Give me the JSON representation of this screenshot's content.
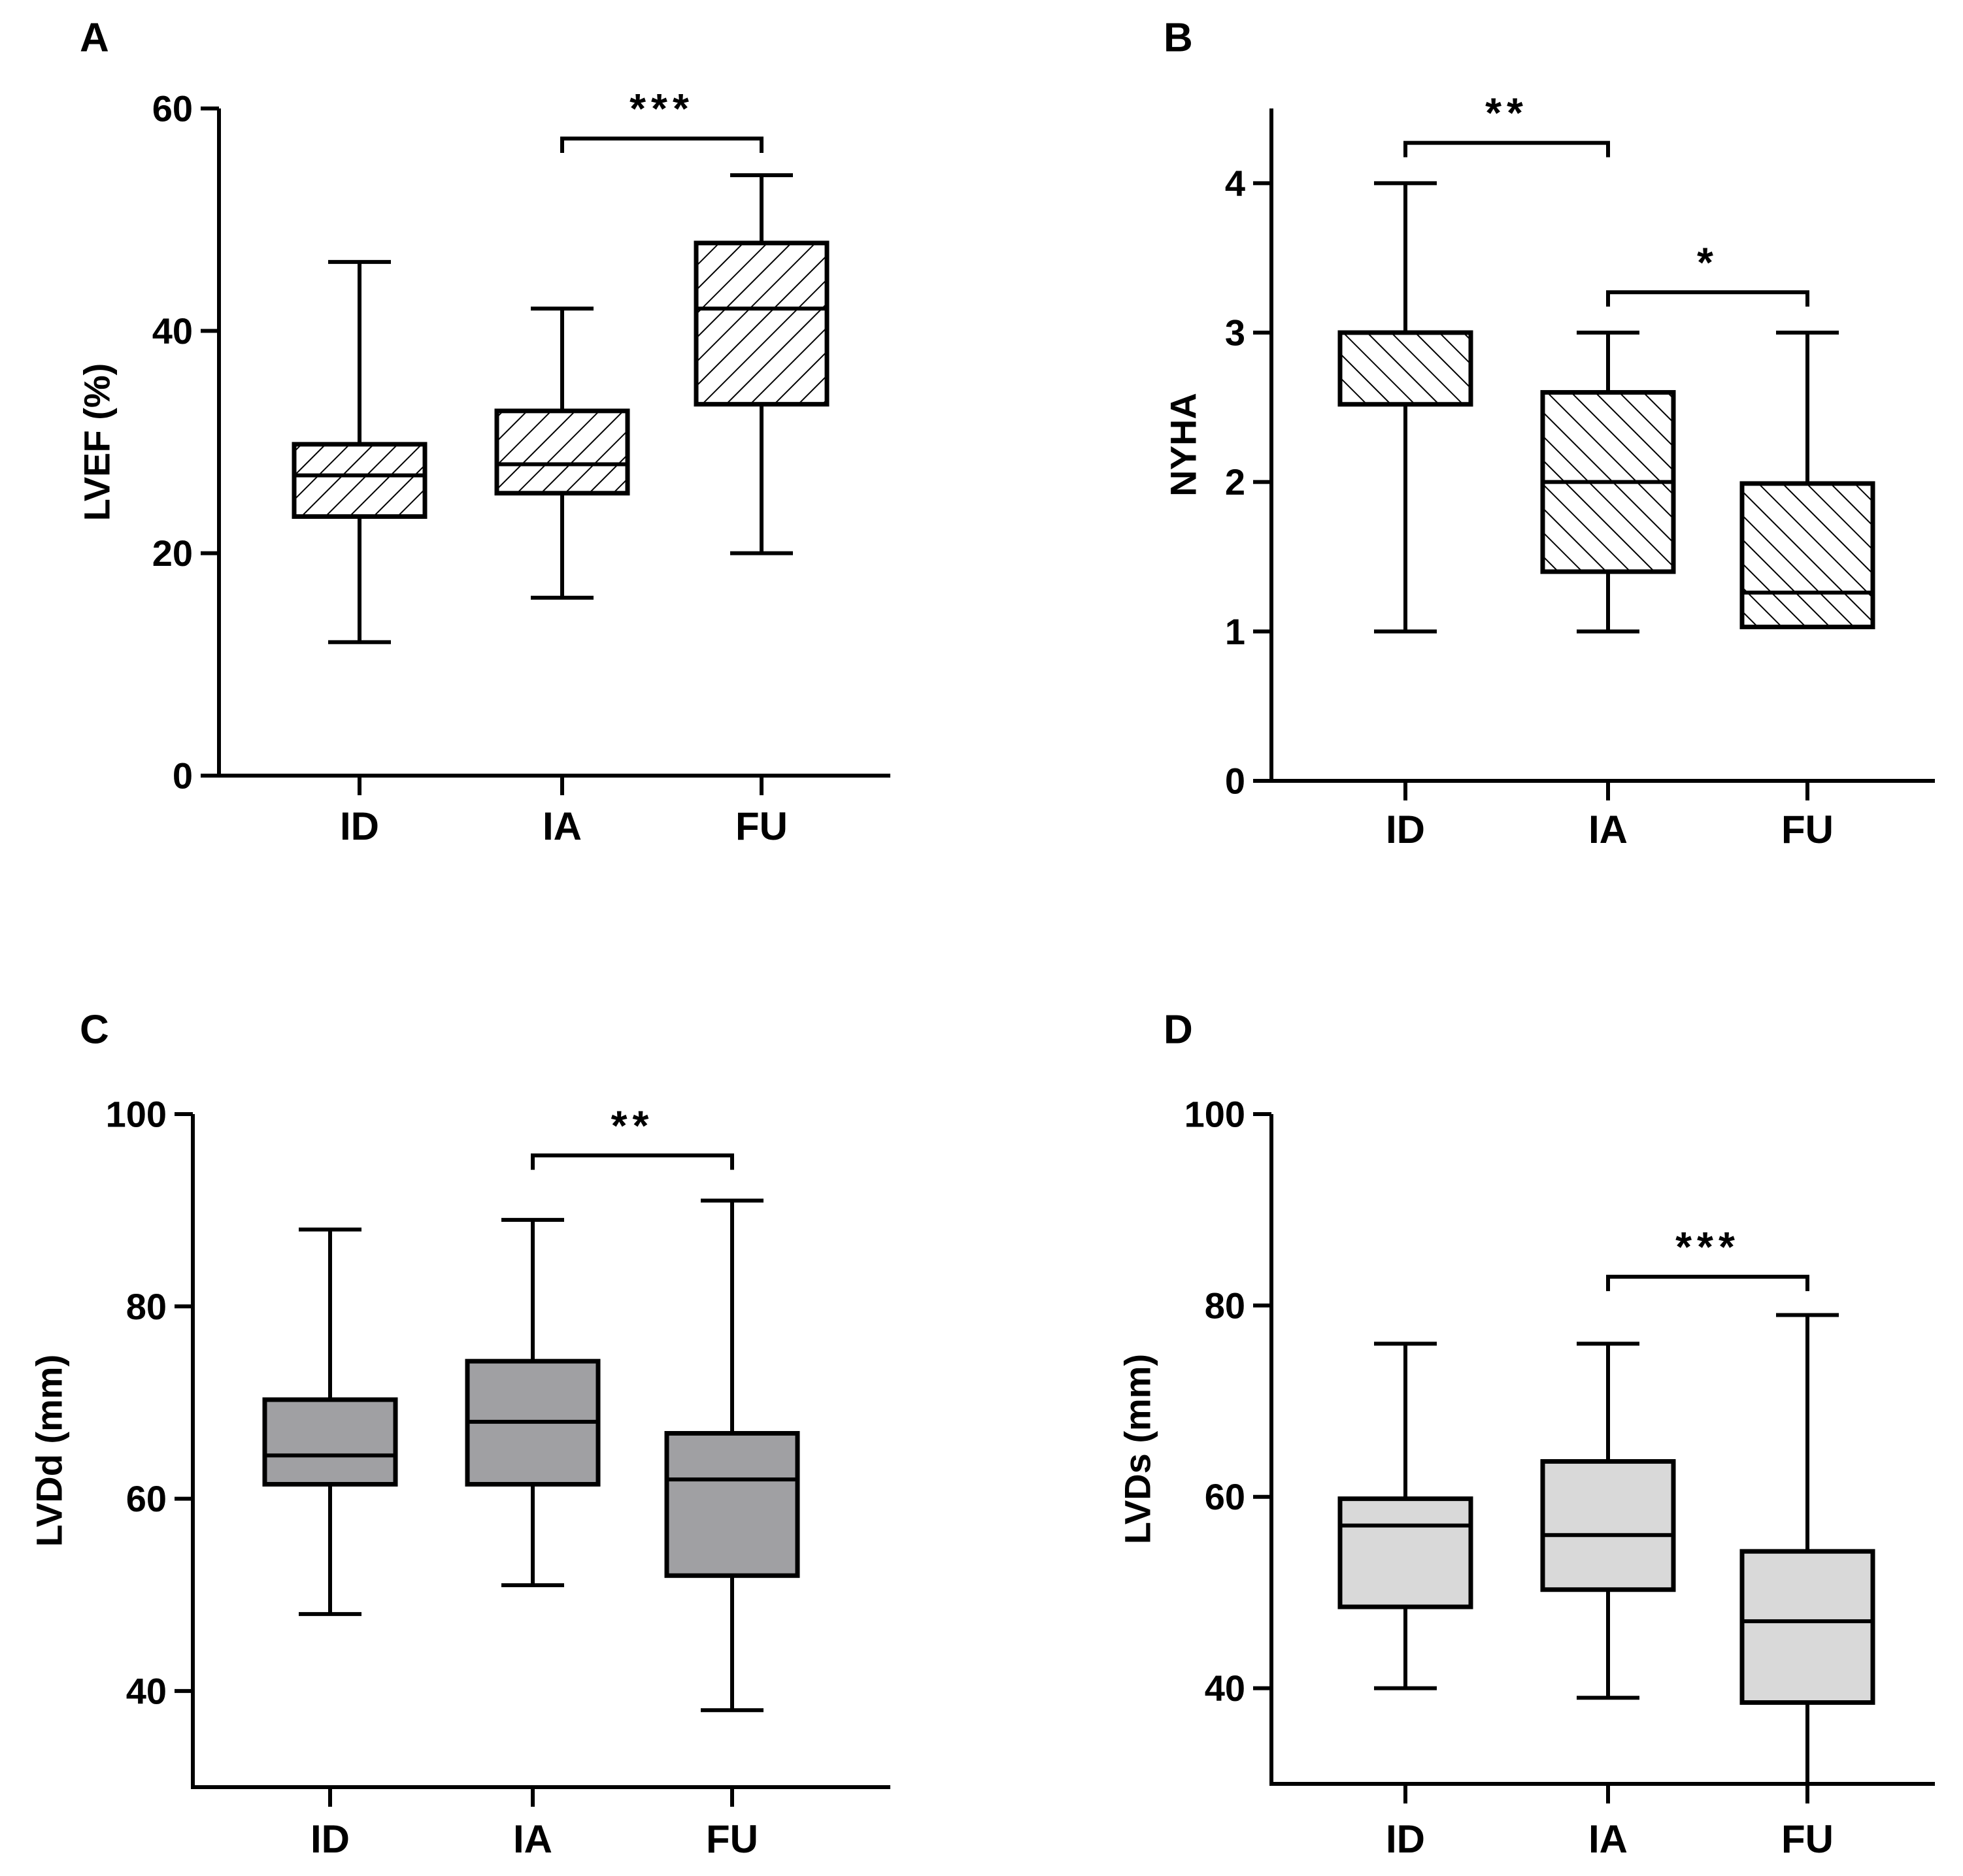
{
  "colors": {
    "axis": "#000000",
    "hatch": "#000000",
    "fill_hatched": "#ffffff",
    "fill_dark": "#a0a0a3",
    "fill_light": "#d9d9d9"
  },
  "chart_data": [
    {
      "panel": "A",
      "type": "box",
      "ylabel": "LVEF (%)",
      "ylim": [
        0,
        60
      ],
      "yticks": [
        0,
        20,
        40,
        60
      ],
      "ytick_labels": [
        "0",
        "20",
        "40",
        "60"
      ],
      "categories": [
        "ID",
        "IA",
        "FU"
      ],
      "fill_style": "hatch-forward",
      "boxes": [
        {
          "category": "ID",
          "min": 12,
          "q1": 23.3,
          "median": 27,
          "q3": 29.8,
          "max": 46.2
        },
        {
          "category": "IA",
          "min": 16,
          "q1": 25.4,
          "median": 28,
          "q3": 32.8,
          "max": 42
        },
        {
          "category": "FU",
          "min": 20,
          "q1": 33.4,
          "median": 42,
          "q3": 47.9,
          "max": 54
        }
      ],
      "significance": [
        {
          "from": "IA",
          "to": "FU",
          "label": "***",
          "y": 57.3
        }
      ]
    },
    {
      "panel": "B",
      "type": "box",
      "ylabel": "NYHA",
      "ylim": [
        0,
        4.5
      ],
      "yticks": [
        0,
        1,
        2,
        3,
        4
      ],
      "ytick_labels": [
        "0",
        "1",
        "2",
        "3",
        "4"
      ],
      "categories": [
        "ID",
        "IA",
        "FU"
      ],
      "fill_style": "hatch-back",
      "boxes": [
        {
          "category": "ID",
          "min": 1,
          "q1": 2.52,
          "median": 3,
          "q3": 3,
          "max": 4
        },
        {
          "category": "IA",
          "min": 1,
          "q1": 1.4,
          "median": 2,
          "q3": 2.6,
          "max": 3
        },
        {
          "category": "FU",
          "min": 1.03,
          "q1": 1.03,
          "median": 1.26,
          "q3": 1.99,
          "max": 3
        }
      ],
      "significance": [
        {
          "from": "ID",
          "to": "IA",
          "label": "**",
          "y": 4.27
        },
        {
          "from": "IA",
          "to": "FU",
          "label": "*",
          "y": 3.27
        }
      ]
    },
    {
      "panel": "C",
      "type": "box",
      "ylabel": "LVDd (mm)",
      "ylim": [
        30,
        100
      ],
      "yticks": [
        40,
        60,
        80,
        100
      ],
      "ytick_labels": [
        "40",
        "60",
        "80",
        "100"
      ],
      "categories": [
        "ID",
        "IA",
        "FU"
      ],
      "fill_style": "dark",
      "boxes": [
        {
          "category": "ID",
          "min": 48,
          "q1": 61.5,
          "median": 64.5,
          "q3": 70.3,
          "max": 88
        },
        {
          "category": "IA",
          "min": 51,
          "q1": 61.5,
          "median": 68,
          "q3": 74.3,
          "max": 89
        },
        {
          "category": "FU",
          "min": 38,
          "q1": 52,
          "median": 62,
          "q3": 66.8,
          "max": 91
        }
      ],
      "significance": [
        {
          "from": "IA",
          "to": "FU",
          "label": "**",
          "y": 95.7
        }
      ]
    },
    {
      "panel": "D",
      "type": "box",
      "ylabel": "LVDs (mm)",
      "ylim": [
        30,
        100
      ],
      "yticks": [
        40,
        60,
        80,
        100
      ],
      "ytick_labels": [
        "40",
        "60",
        "80",
        "100"
      ],
      "categories": [
        "ID",
        "IA",
        "FU"
      ],
      "fill_style": "light",
      "boxes": [
        {
          "category": "ID",
          "min": 40,
          "q1": 48.5,
          "median": 57,
          "q3": 59.8,
          "max": 76
        },
        {
          "category": "IA",
          "min": 39,
          "q1": 50.3,
          "median": 56,
          "q3": 63.7,
          "max": 76
        },
        {
          "category": "FU",
          "min": 30,
          "q1": 38.5,
          "median": 47,
          "q3": 54.3,
          "max": 79
        }
      ],
      "significance": [
        {
          "from": "IA",
          "to": "FU",
          "label": "***",
          "y": 83
        }
      ]
    }
  ]
}
